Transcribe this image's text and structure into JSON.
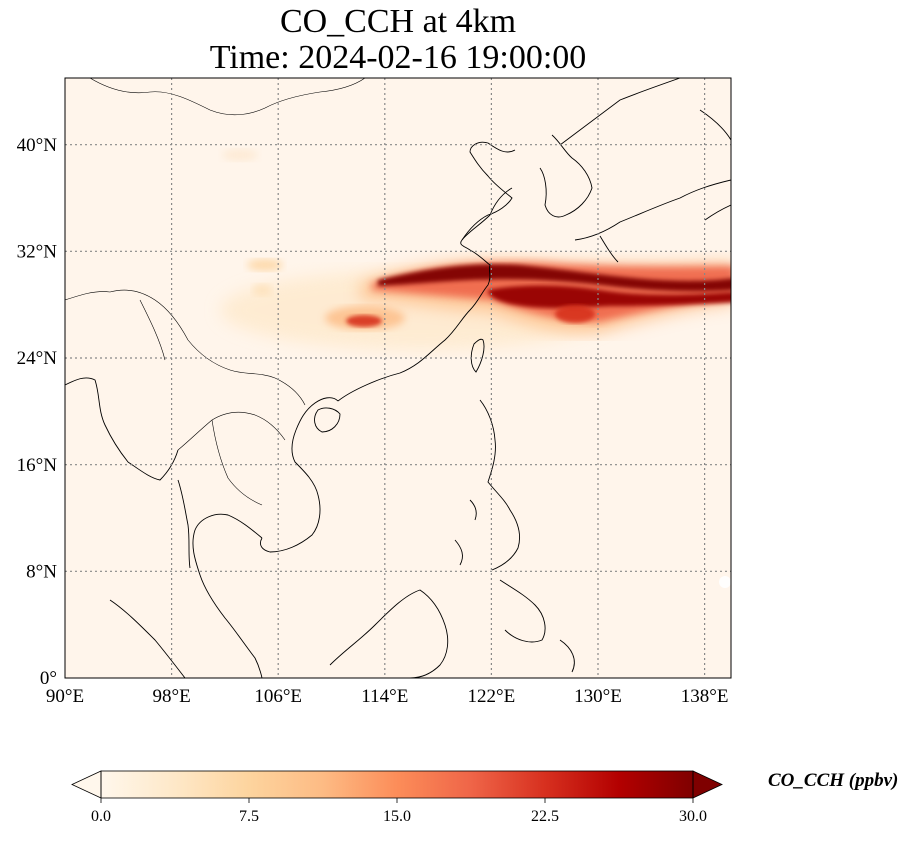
{
  "title": {
    "line1": "CO_CCH at 4km",
    "line2": "Time: 2024-02-16 19:00:00"
  },
  "map": {
    "lon_range": [
      90,
      140
    ],
    "lat_range": [
      0,
      45
    ],
    "lon_ticks": [
      "90°E",
      "98°E",
      "106°E",
      "114°E",
      "122°E",
      "130°E",
      "138°E"
    ],
    "lat_ticks": [
      "0°",
      "8°N",
      "16°N",
      "24°N",
      "32°N",
      "40°N"
    ],
    "gridlines": "dotted",
    "coastline_color": "#000000",
    "background_color": "#fff5eb",
    "plume": {
      "description_color_max": "#7f0000",
      "peak_region": "123°E–140°E, 27°N–31°N"
    }
  },
  "colorbar": {
    "label": "CO_CCH (ppbv)",
    "min": 0.0,
    "max": 30.0,
    "ticks": [
      "0.0",
      "7.5",
      "15.0",
      "22.5",
      "30.0"
    ],
    "colormap": "OrRd",
    "extend": "both",
    "colors": [
      "#fff7ec",
      "#fee8c8",
      "#fdd49e",
      "#fdbb84",
      "#fc8d59",
      "#ef6548",
      "#d7301f",
      "#b30000",
      "#7f0000"
    ]
  }
}
